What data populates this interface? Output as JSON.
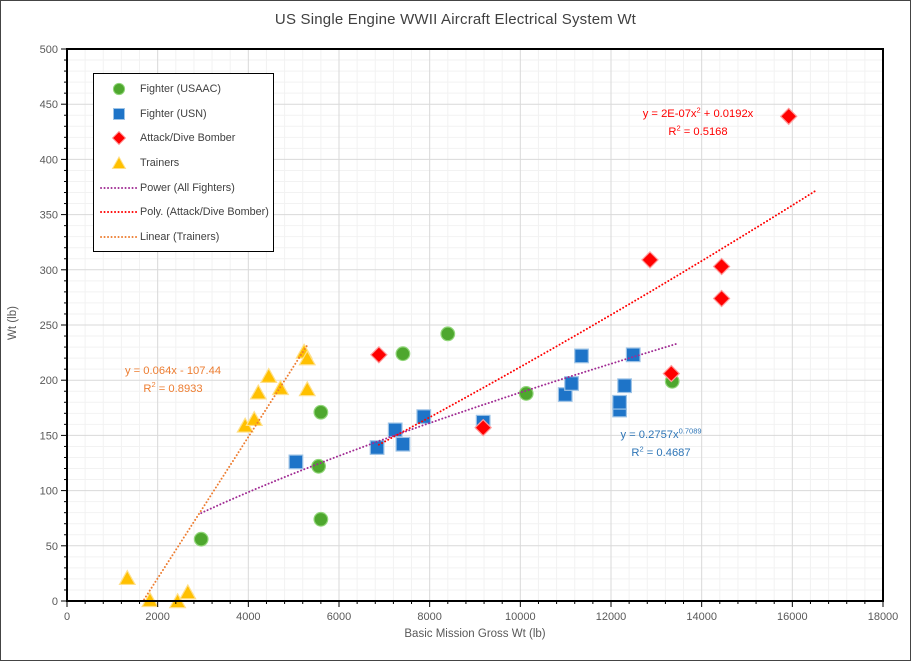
{
  "title": "US Single Engine WWII Aircraft Electrical System Wt",
  "colors": {
    "title_text": "#404040",
    "tick_text": "#595959",
    "axis_line": "#000000",
    "grid_major": "#D9D9D9",
    "grid_minor": "#F2F2F2"
  },
  "chart_data": {
    "type": "scatter",
    "title": "US Single Engine WWII Aircraft Electrical System Wt",
    "xlabel": "Basic Mission Gross Wt (lb)",
    "ylabel": "Wt (lb)",
    "xlim": [
      0,
      18000
    ],
    "ylim": [
      0,
      500
    ],
    "x_ticks": [
      0,
      2000,
      4000,
      6000,
      8000,
      10000,
      12000,
      14000,
      16000,
      18000
    ],
    "y_ticks": [
      0,
      50,
      100,
      150,
      200,
      250,
      300,
      350,
      400,
      450,
      500
    ],
    "x_minor_step": 400,
    "y_minor_step": 10,
    "grid": "major and minor, light gray",
    "legend_position": "inside top-left, boxed",
    "series": [
      {
        "name": "Fighter (USAAC)",
        "marker": "circle",
        "color": "#4EA72E",
        "edge": "#90D578",
        "points": [
          [
            2960,
            56
          ],
          [
            5600,
            74
          ],
          [
            5550,
            122
          ],
          [
            5600,
            171
          ],
          [
            7410,
            224
          ],
          [
            8400,
            242
          ],
          [
            10130,
            188
          ],
          [
            13350,
            199
          ]
        ]
      },
      {
        "name": "Fighter (USN)",
        "marker": "square",
        "color": "#1E74C8",
        "edge": "#9DC3E6",
        "points": [
          [
            5050,
            126
          ],
          [
            6840,
            139
          ],
          [
            7240,
            155
          ],
          [
            7410,
            142
          ],
          [
            7870,
            167
          ],
          [
            9180,
            162
          ],
          [
            10990,
            187
          ],
          [
            11130,
            197
          ],
          [
            11350,
            222
          ],
          [
            12190,
            173
          ],
          [
            12190,
            180
          ],
          [
            12300,
            195
          ],
          [
            12490,
            223
          ]
        ]
      },
      {
        "name": "Attack/Dive Bomber",
        "marker": "diamond",
        "color": "#FF0000",
        "edge": "#FF9999",
        "points": [
          [
            6880,
            223
          ],
          [
            9180,
            157
          ],
          [
            12860,
            309
          ],
          [
            13330,
            206
          ],
          [
            14440,
            274
          ],
          [
            14440,
            303
          ],
          [
            15920,
            439
          ]
        ]
      },
      {
        "name": "Trainers",
        "marker": "triangle",
        "color": "#FFC000",
        "edge": "#FFE089",
        "points": [
          [
            1330,
            21
          ],
          [
            1830,
            1
          ],
          [
            2440,
            0
          ],
          [
            2665,
            8
          ],
          [
            3930,
            159
          ],
          [
            4130,
            165
          ],
          [
            4220,
            189
          ],
          [
            4450,
            204
          ],
          [
            4710,
            193
          ],
          [
            5300,
            192
          ],
          [
            5230,
            226
          ],
          [
            5300,
            220
          ]
        ]
      }
    ],
    "trendlines": [
      {
        "name": "Power (All Fighters)",
        "color": "#A02B93",
        "style": "dotted",
        "fit": "power",
        "a": 0.2757,
        "b": 0.7089,
        "domain": [
          2960,
          13440
        ],
        "equation": "y = 0.2757x^0.7089",
        "r_squared": 0.4687
      },
      {
        "name": "Poly. (Attack/Dive Bomber)",
        "color": "#FF0000",
        "style": "dotted",
        "fit": "poly2",
        "a": 2e-07,
        "b": 0.0192,
        "c": 0,
        "domain": [
          6880,
          16500
        ],
        "equation": "y = 2E-07x^2 + 0.0192x",
        "r_squared": 0.5168
      },
      {
        "name": "Linear (Trainers)",
        "color": "#ED7D31",
        "style": "dotted",
        "fit": "linear",
        "m": 0.064,
        "b": -107.44,
        "domain": [
          1700,
          5320
        ],
        "equation": "y = 0.064x - 107.44",
        "r_squared": 0.8933
      }
    ],
    "annotations": [
      {
        "id": "poly-equation",
        "color": "#FF0000",
        "cx": 697,
        "cy": 122,
        "line1": [
          {
            "t": "y = 2E-07x"
          },
          {
            "t": "2",
            "sup": true
          },
          {
            "t": " + 0.0192x"
          }
        ],
        "line2": [
          {
            "t": "R"
          },
          {
            "t": "2",
            "sup": true
          },
          {
            "t": " = 0.5168"
          }
        ]
      },
      {
        "id": "linear-equation",
        "color": "#ED7D31",
        "cx": 172,
        "cy": 380,
        "line1": [
          {
            "t": "y = 0.064x - 107.44"
          }
        ],
        "line2": [
          {
            "t": "R"
          },
          {
            "t": "2",
            "sup": true
          },
          {
            "t": " = 0.8933"
          }
        ]
      },
      {
        "id": "power-equation",
        "color": "#2E75B6",
        "cx": 660,
        "cy": 443,
        "line1": [
          {
            "t": "y = 0.2757x"
          },
          {
            "t": "0.7089",
            "sup": true
          }
        ],
        "line2": [
          {
            "t": "R"
          },
          {
            "t": "2",
            "sup": true
          },
          {
            "t": " = 0.4687"
          }
        ]
      }
    ],
    "legend": {
      "items": [
        {
          "label": "Fighter (USAAC)",
          "marker": "circle",
          "color": "#4EA72E",
          "edge": "#90D578"
        },
        {
          "label": "Fighter (USN)",
          "marker": "square",
          "color": "#1E74C8",
          "edge": "#9DC3E6"
        },
        {
          "label": "Attack/Dive Bomber",
          "marker": "diamond",
          "color": "#FF0000",
          "edge": "#FF9999"
        },
        {
          "label": "Trainers",
          "marker": "triangle",
          "color": "#FFC000",
          "edge": "#FFE089"
        },
        {
          "label": "Power (All Fighters)",
          "marker": "dotted-line",
          "color": "#A02B93"
        },
        {
          "label": "Poly. (Attack/Dive Bomber)",
          "marker": "dotted-line",
          "color": "#FF0000"
        },
        {
          "label": "Linear (Trainers)",
          "marker": "dotted-line",
          "color": "#ED7D31"
        }
      ]
    }
  }
}
